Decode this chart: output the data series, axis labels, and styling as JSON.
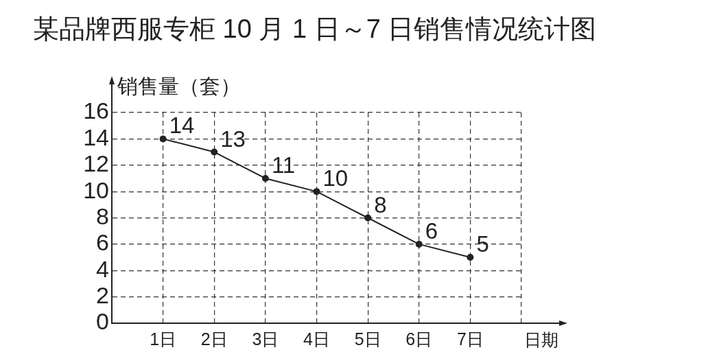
{
  "chart_data": {
    "type": "line",
    "title": "某品牌西服专柜 10 月 1 日～7 日销售情况统计图",
    "xlabel": "日期",
    "ylabel": "销售量（套）",
    "categories": [
      "1日",
      "2日",
      "3日",
      "4日",
      "5日",
      "6日",
      "7日"
    ],
    "series": [
      {
        "color": "#222222",
        "values": [
          14,
          13,
          11,
          10,
          8,
          6,
          5
        ]
      }
    ],
    "ylim": [
      0,
      16
    ],
    "yticks": [
      0,
      2,
      4,
      6,
      8,
      10,
      12,
      14,
      16
    ],
    "grid": true,
    "marker": "circle",
    "line_style": "solid",
    "data_labels": true
  }
}
